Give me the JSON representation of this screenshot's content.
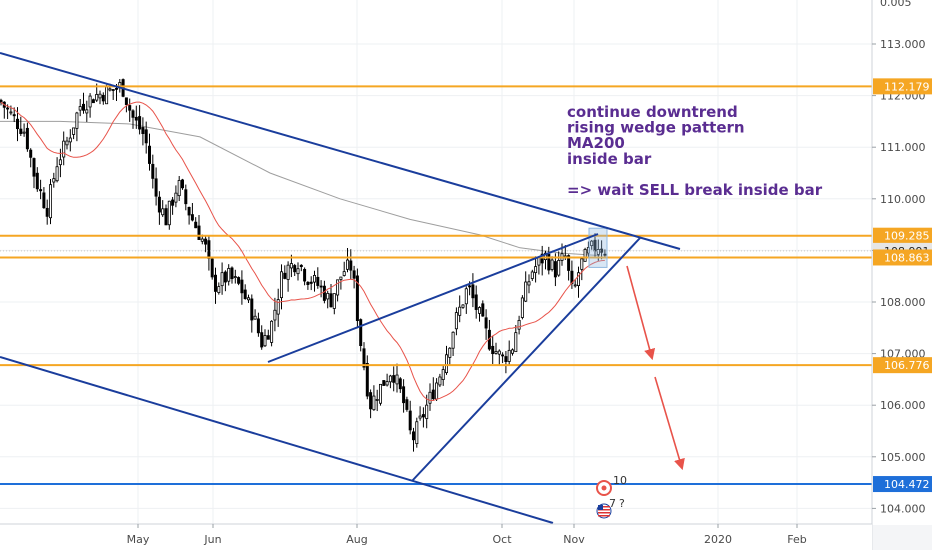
{
  "chart_data": {
    "type": "candlestick",
    "price_axis": {
      "ticks": [
        "113.000",
        "112.000",
        "111.000",
        "110.000",
        "109.000",
        "108.000",
        "107.000",
        "106.000",
        "105.000",
        "104.000"
      ],
      "top_partial_tick": "0.005",
      "range": [
        103.7,
        113.8
      ]
    },
    "time_axis": {
      "ticks": [
        "May",
        "Jun",
        "Aug",
        "Oct",
        "Nov",
        "2020",
        "Feb"
      ]
    },
    "horizontal_levels": [
      {
        "label": "112.179",
        "value": 112.179,
        "color": "#f5a623"
      },
      {
        "label": "109.285",
        "value": 109.285,
        "color": "#f5a623"
      },
      {
        "label": "108.991",
        "value": 108.991,
        "color": "#9e9e9e"
      },
      {
        "label": "108.863",
        "value": 108.863,
        "color": "#f5a623"
      },
      {
        "label": "106.776",
        "value": 106.776,
        "color": "#f5a623"
      },
      {
        "label": "104.472",
        "value": 104.472,
        "color": "#1e6fd9"
      }
    ],
    "annotation_lines": [
      "continue downtrend",
      "rising wedge pattern",
      "MA200",
      "inside bar",
      "",
      "=> wait SELL break inside bar"
    ],
    "annotation_color": "#5a2d91",
    "event_markers": [
      {
        "label": "10",
        "icon": "earnings-icon"
      },
      {
        "label": "7",
        "icon": "us-flag-icon"
      },
      {
        "label": "?",
        "icon": "question-icon"
      }
    ],
    "colors": {
      "candles": "#000000",
      "ma_fast": "#e8534a",
      "ma200": "#9e9e9e",
      "trendlines": "#1a3d9c",
      "projection_arrows": "#e8534a",
      "inside_bar_box": "#90b8e0"
    },
    "grid": true
  }
}
